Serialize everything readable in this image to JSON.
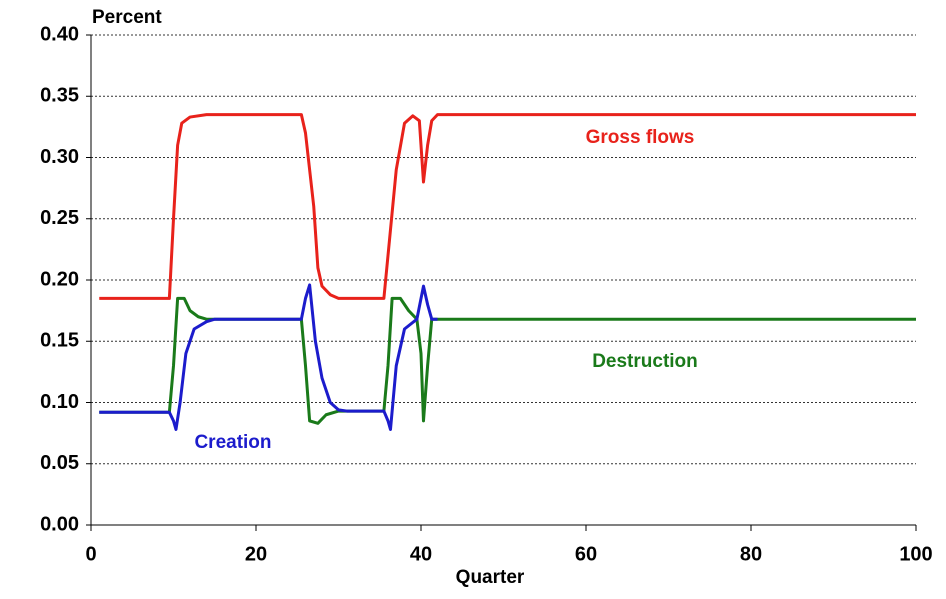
{
  "chart_data": {
    "type": "line",
    "y_label": "Percent",
    "x_label": "Quarter",
    "xlim": [
      0,
      100
    ],
    "xticks": [
      0,
      20,
      40,
      60,
      80,
      100
    ],
    "ylim": [
      0,
      0.4
    ],
    "yticks": [
      {
        "value": 0,
        "label": "0.00"
      },
      {
        "value": 0.05,
        "label": "0.05"
      },
      {
        "value": 0.1,
        "label": "0.10"
      },
      {
        "value": 0.15,
        "label": "0.15"
      },
      {
        "value": 0.2,
        "label": "0.20"
      },
      {
        "value": 0.25,
        "label": "0.25"
      },
      {
        "value": 0.3,
        "label": "0.30"
      },
      {
        "value": 0.35,
        "label": "0.35"
      },
      {
        "value": 0.4,
        "label": "0.40"
      }
    ],
    "grid": true,
    "series": [
      {
        "name": "Gross flows",
        "color": "#e8221b",
        "x": [
          1,
          9.5,
          10,
          10.5,
          11,
          12,
          14,
          25.5,
          26,
          27,
          27.5,
          28,
          29,
          30,
          35.5,
          36,
          37,
          38,
          39,
          39.8,
          40.3,
          40.8,
          41.3,
          42,
          100
        ],
        "values": [
          0.185,
          0.185,
          0.25,
          0.31,
          0.328,
          0.333,
          0.335,
          0.335,
          0.32,
          0.26,
          0.21,
          0.195,
          0.188,
          0.185,
          0.185,
          0.22,
          0.29,
          0.328,
          0.334,
          0.33,
          0.28,
          0.31,
          0.33,
          0.335,
          0.335
        ]
      },
      {
        "name": "Destruction",
        "color": "#1a7a1a",
        "x": [
          1,
          9.5,
          10,
          10.5,
          11.3,
          12,
          13,
          14,
          25.5,
          26,
          26.5,
          27.5,
          28.5,
          30,
          35.5,
          36,
          36.5,
          37.5,
          38.5,
          39.5,
          40,
          40.3,
          40.8,
          41.3,
          100
        ],
        "values": [
          0.092,
          0.092,
          0.13,
          0.185,
          0.185,
          0.175,
          0.17,
          0.168,
          0.168,
          0.13,
          0.085,
          0.083,
          0.09,
          0.093,
          0.093,
          0.13,
          0.185,
          0.185,
          0.175,
          0.168,
          0.14,
          0.085,
          0.13,
          0.168,
          0.168
        ]
      },
      {
        "name": "Creation",
        "color": "#1c1ccc",
        "x": [
          1,
          9.5,
          10,
          10.3,
          10.8,
          11.5,
          12.5,
          14,
          15,
          25.5,
          26,
          26.5,
          27.2,
          28,
          29,
          30,
          31,
          35.5,
          36,
          36.3,
          37,
          38,
          39.5,
          40.3,
          40.8,
          41.3,
          42
        ],
        "values": [
          0.092,
          0.092,
          0.085,
          0.078,
          0.1,
          0.14,
          0.16,
          0.166,
          0.168,
          0.168,
          0.185,
          0.196,
          0.15,
          0.12,
          0.1,
          0.094,
          0.093,
          0.093,
          0.085,
          0.078,
          0.13,
          0.16,
          0.168,
          0.195,
          0.18,
          0.168,
          0.168
        ]
      }
    ]
  }
}
